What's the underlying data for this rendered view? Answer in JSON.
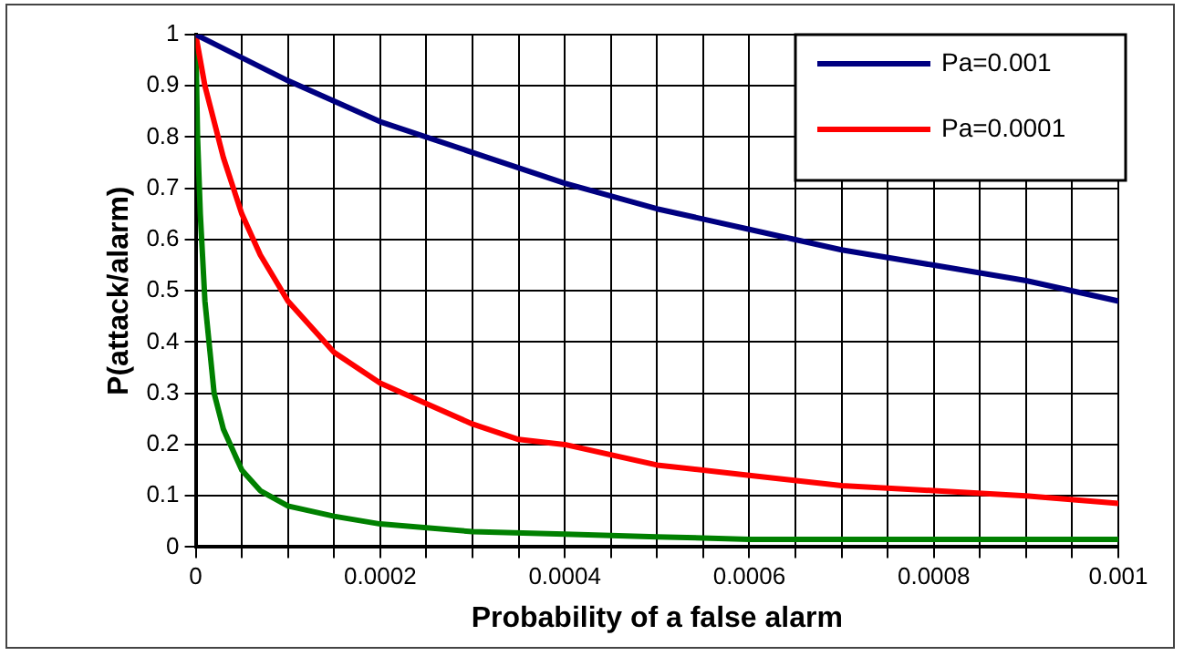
{
  "chart_data": {
    "type": "line",
    "xlabel": "Probability of a false alarm",
    "ylabel": "P(attack/alarm)",
    "xlim": [
      0,
      0.001
    ],
    "ylim": [
      0,
      1
    ],
    "xticks": [
      0,
      {
        "value": 5e-05,
        "label": null
      },
      {
        "value": 0.0001,
        "label": null
      },
      {
        "value": 0.00015,
        "label": null
      },
      0.0002,
      {
        "value": 0.00025,
        "label": null
      },
      {
        "value": 0.0003,
        "label": null
      },
      {
        "value": 0.00035,
        "label": null
      },
      0.0004,
      {
        "value": 0.00045,
        "label": null
      },
      {
        "value": 0.0005,
        "label": null
      },
      {
        "value": 0.00055,
        "label": null
      },
      0.0006,
      {
        "value": 0.00065,
        "label": null
      },
      {
        "value": 0.0007,
        "label": null
      },
      {
        "value": 0.00075,
        "label": null
      },
      0.0008,
      {
        "value": 0.00085,
        "label": null
      },
      {
        "value": 0.0009,
        "label": null
      },
      {
        "value": 0.00095,
        "label": null
      },
      0.001
    ],
    "yticks": [
      0,
      0.1,
      0.2,
      0.3,
      0.4,
      0.5,
      0.6,
      0.7,
      0.8,
      0.9,
      1
    ],
    "grid": true,
    "legend": "top right",
    "marker": "none",
    "line_style": "solid",
    "series": [
      {
        "name": "Pa=0.001",
        "color": "#000080",
        "x": [
          0,
          0.0001,
          0.0002,
          0.0003,
          0.0004,
          0.0005,
          0.0006,
          0.0007,
          0.0008,
          0.0009,
          0.001
        ],
        "values": [
          1,
          0.91,
          0.83,
          0.77,
          0.71,
          0.66,
          0.62,
          0.58,
          0.55,
          0.52,
          0.48
        ]
      },
      {
        "name": "Pa=0.0001",
        "color": "#ff0000",
        "x": [
          0,
          5e-06,
          1e-05,
          2e-05,
          3e-05,
          5e-05,
          7e-05,
          0.0001,
          0.00015,
          0.0002,
          0.00025,
          0.0003,
          0.00035,
          0.0004,
          0.0005,
          0.0006,
          0.0007,
          0.0008,
          0.0009,
          0.001
        ],
        "values": [
          1,
          0.95,
          0.9,
          0.83,
          0.76,
          0.65,
          0.57,
          0.48,
          0.38,
          0.32,
          0.28,
          0.24,
          0.21,
          0.2,
          0.16,
          0.14,
          0.12,
          0.11,
          0.1,
          0.085
        ]
      },
      {
        "color": "#008000",
        "x": [
          0,
          2e-06,
          5e-06,
          1e-05,
          2e-05,
          3e-05,
          5e-05,
          7e-05,
          0.0001,
          0.00015,
          0.0002,
          0.0003,
          0.0004,
          0.0005,
          0.0006,
          0.0008,
          0.001
        ],
        "values": [
          1,
          0.8,
          0.65,
          0.48,
          0.3,
          0.23,
          0.15,
          0.11,
          0.08,
          0.06,
          0.045,
          0.03,
          0.025,
          0.02,
          0.015,
          0.015,
          0.015
        ]
      }
    ]
  }
}
